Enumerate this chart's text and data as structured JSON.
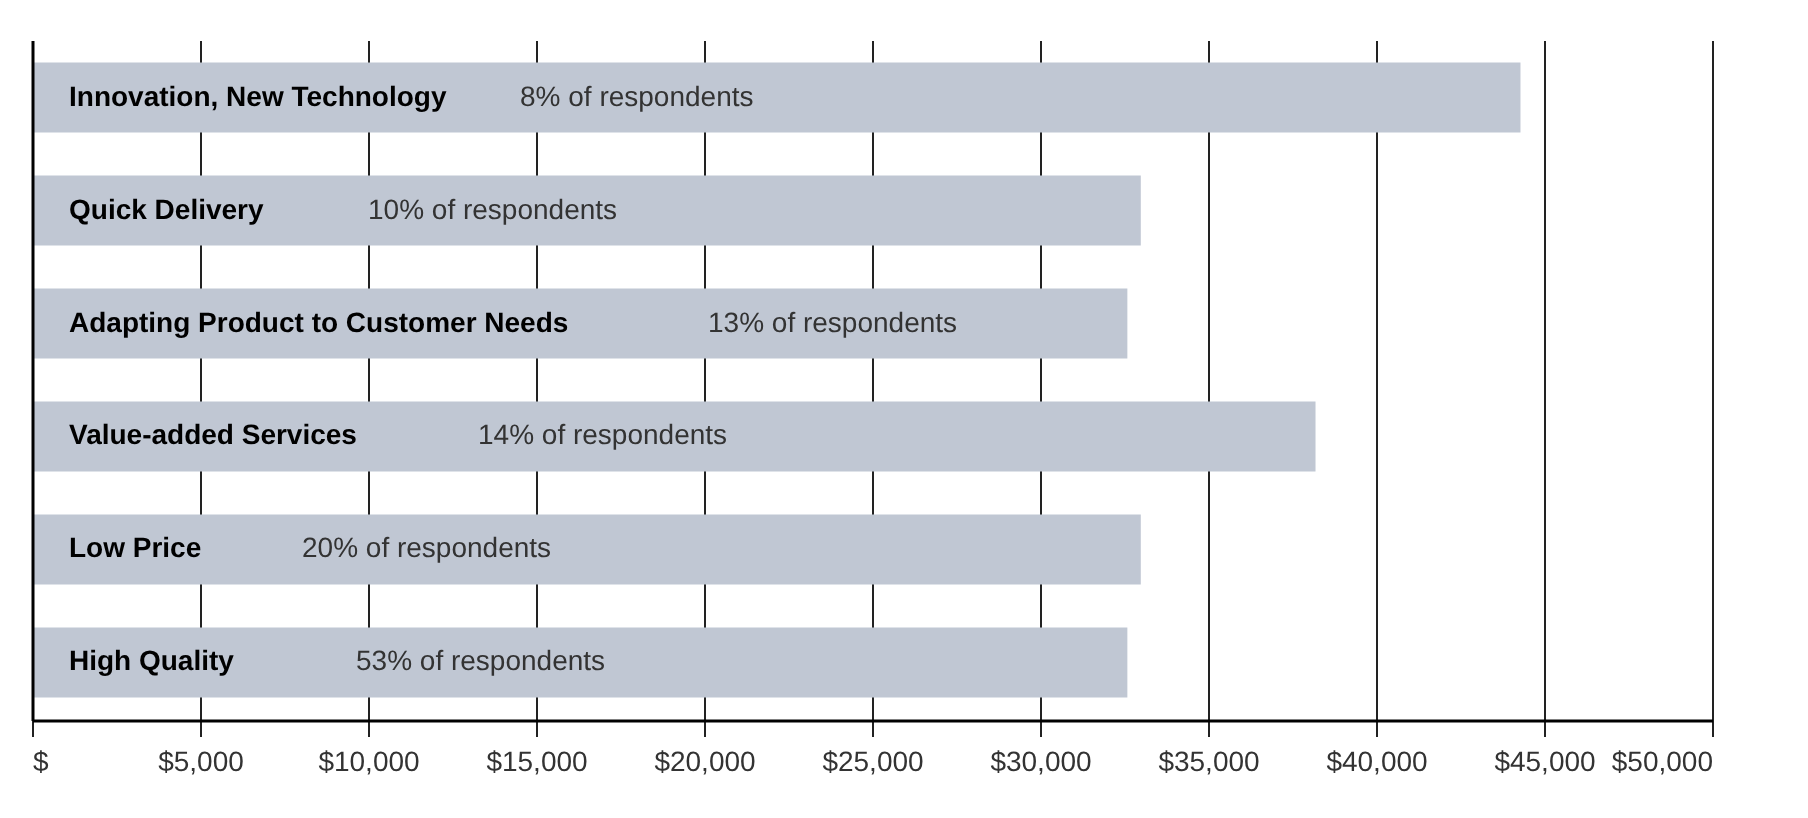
{
  "chart_data": {
    "type": "bar",
    "orientation": "horizontal",
    "categories": [
      "Innovation, New Technology",
      "Quick Delivery",
      "Adapting Product to Customer Needs",
      "Value-added Services",
      "Low Price",
      "High Quality"
    ],
    "values": [
      44300,
      33000,
      32600,
      38200,
      33000,
      32600
    ],
    "color": "#c0c7d3",
    "xlim": [
      0,
      50000
    ],
    "xticks": [
      {
        "value": 0,
        "label": "$"
      },
      {
        "value": 5000,
        "label": "$5,000"
      },
      {
        "value": 10000,
        "label": "$10,000"
      },
      {
        "value": 15000,
        "label": "$15,000"
      },
      {
        "value": 20000,
        "label": "$20,000"
      },
      {
        "value": 25000,
        "label": "$25,000"
      },
      {
        "value": 30000,
        "label": "$30,000"
      },
      {
        "value": 35000,
        "label": "$35,000"
      },
      {
        "value": 40000,
        "label": "$40,000"
      },
      {
        "value": 45000,
        "label": "$45,000"
      },
      {
        "value": 50000,
        "label": "$50,000"
      }
    ],
    "grid": "x",
    "annotations": [
      "8% of respondents",
      "10% of respondents",
      "13% of respondents",
      "14% of respondents",
      "20% of respondents",
      "53% of respondents"
    ]
  }
}
